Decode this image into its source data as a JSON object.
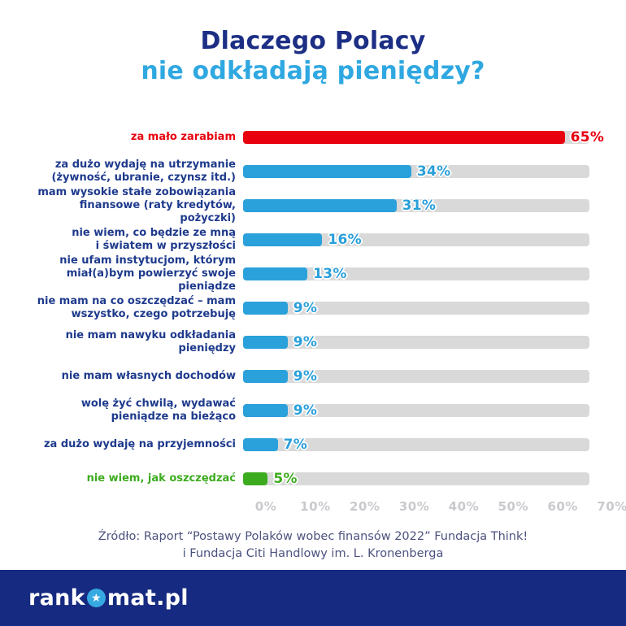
{
  "title": {
    "line1": "Dlaczego Polacy",
    "line2": "nie odkładają pieniędzy?"
  },
  "chart_data": {
    "type": "bar",
    "orientation": "horizontal",
    "title": "Dlaczego Polacy nie odkładają pieniędzy?",
    "xlabel": "",
    "ylabel": "",
    "xlim": [
      0,
      70
    ],
    "unit": "%",
    "grid": false,
    "x_ticks": [
      "0%",
      "10%",
      "20%",
      "30%",
      "40%",
      "50%",
      "60%",
      "70%"
    ],
    "categories": [
      "za mało zarabiam",
      "za dużo wydaję na utrzymanie (żywność, ubranie, czynsz itd.)",
      "mam wysokie stałe zobowiązania finansowe (raty kredytów, pożyczki)",
      "nie wiem, co będzie ze mną i światem w przyszłości",
      "nie ufam instytucjom, którym miał(a)bym powierzyć swoje pieniądze",
      "nie mam na co oszczędzać – mam wszystko, czego potrzebuję",
      "nie mam nawyku odkładania pieniędzy",
      "nie mam własnych dochodów",
      "wolę żyć chwilą, wydawać pieniądze na bieżąco",
      "za dużo wydaję na przyjemności",
      "nie wiem, jak oszczędzać"
    ],
    "values": [
      65,
      34,
      31,
      16,
      13,
      9,
      9,
      9,
      9,
      7,
      5
    ],
    "bars": [
      {
        "label_lines": [
          "za mało zarabiam"
        ],
        "value": 65,
        "display": "65%",
        "bar_color": "#e8000f",
        "label_color": "#e8000f",
        "value_color": "#e8000f"
      },
      {
        "label_lines": [
          "za dużo wydaję na utrzymanie",
          "(żywność, ubranie, czynsz itd.)"
        ],
        "value": 34,
        "display": "34%",
        "bar_color": "#2aa1db",
        "label_color": "#1e3a8c",
        "value_color": "#2a9fd9"
      },
      {
        "label_lines": [
          "mam wysokie stałe zobowiązania",
          "finansowe (raty kredytów, pożyczki)"
        ],
        "value": 31,
        "display": "31%",
        "bar_color": "#2aa1db",
        "label_color": "#1e3a8c",
        "value_color": "#2a9fd9"
      },
      {
        "label_lines": [
          "nie wiem, co będzie ze mną",
          "i światem w przyszłości"
        ],
        "value": 16,
        "display": "16%",
        "bar_color": "#2aa1db",
        "label_color": "#1e3a8c",
        "value_color": "#2a9fd9"
      },
      {
        "label_lines": [
          "nie ufam instytucjom, którym",
          "miał(a)bym powierzyć swoje pieniądze"
        ],
        "value": 13,
        "display": "13%",
        "bar_color": "#2aa1db",
        "label_color": "#1e3a8c",
        "value_color": "#2a9fd9"
      },
      {
        "label_lines": [
          "nie mam na co oszczędzać – mam",
          "wszystko, czego potrzebuję"
        ],
        "value": 9,
        "display": "9%",
        "bar_color": "#2aa1db",
        "label_color": "#1e3a8c",
        "value_color": "#2a9fd9"
      },
      {
        "label_lines": [
          "nie mam nawyku odkładania pieniędzy"
        ],
        "value": 9,
        "display": "9%",
        "bar_color": "#2aa1db",
        "label_color": "#1e3a8c",
        "value_color": "#2a9fd9"
      },
      {
        "label_lines": [
          "nie mam własnych dochodów"
        ],
        "value": 9,
        "display": "9%",
        "bar_color": "#2aa1db",
        "label_color": "#1e3a8c",
        "value_color": "#2a9fd9"
      },
      {
        "label_lines": [
          "wolę żyć chwilą, wydawać",
          "pieniądze na bieżąco"
        ],
        "value": 9,
        "display": "9%",
        "bar_color": "#2aa1db",
        "label_color": "#1e3a8c",
        "value_color": "#2a9fd9"
      },
      {
        "label_lines": [
          "za dużo wydaję na przyjemności"
        ],
        "value": 7,
        "display": "7%",
        "bar_color": "#2aa1db",
        "label_color": "#1e3a8c",
        "value_color": "#2a9fd9"
      },
      {
        "label_lines": [
          "nie wiem, jak oszczędzać"
        ],
        "value": 5,
        "display": "5%",
        "bar_color": "#3dab1f",
        "label_color": "#3dab1f",
        "value_color": "#3dab1f"
      }
    ],
    "track_color": "#d9d9d9",
    "axis_tick_color": "#c9c9ce"
  },
  "source": {
    "line1": "Źródło: Raport “Postawy Polaków wobec finansów 2022” Fundacja Think!",
    "line2": "i Fundacja Citi Handlowy im. L. Kronenberga"
  },
  "footer": {
    "logo_prefix": "rank",
    "logo_star_glyph": "★",
    "logo_suffix": "mat.pl",
    "background_color": "#152a80",
    "star_circle_color": "#36a9e2"
  },
  "colors": {
    "title_navy": "#1d2f85",
    "title_blue": "#2fa8e1",
    "label_navy": "#1e3a8c",
    "bar_blue": "#2aa1db",
    "bar_red": "#e8000f",
    "bar_green": "#3dab1f"
  }
}
